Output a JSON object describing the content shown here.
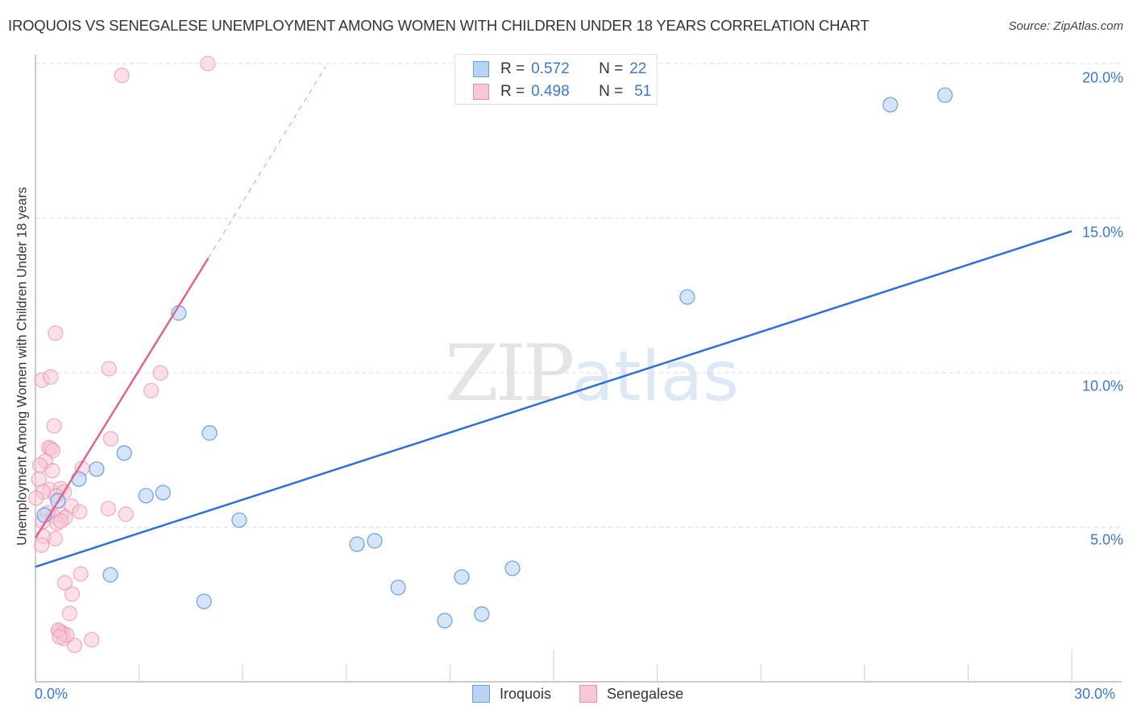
{
  "header": {
    "title": "IROQUOIS VS SENEGALESE UNEMPLOYMENT AMONG WOMEN WITH CHILDREN UNDER 18 YEARS CORRELATION CHART",
    "source": "Source: ZipAtlas.com"
  },
  "watermark": {
    "zip": "ZIP",
    "atlas": "atlas"
  },
  "colors": {
    "iroquois_fill": "#b9d3f5",
    "iroquois_stroke": "#6b9fe0",
    "iroquois_line": "#2f6fd6",
    "senegalese_fill": "#f8c6d5",
    "senegalese_stroke": "#eb8eab",
    "senegalese_line": "#e0648e",
    "tick_label": "#3b78d0"
  },
  "legend": {
    "rows": [
      {
        "series": "Iroquois",
        "r_label": "R =",
        "r_value": "0.572",
        "n_label": "N =",
        "n_value": "22"
      },
      {
        "series": "Senegalese",
        "r_label": "R =",
        "r_value": "0.498",
        "n_label": "N =",
        "n_value": "51"
      }
    ]
  },
  "bottom_legend": [
    {
      "label": "Iroquois"
    },
    {
      "label": "Senegalese"
    }
  ],
  "axes": {
    "y_label": "Unemployment Among Women with Children Under 18 years",
    "y_ticks": [
      "20.0%",
      "15.0%",
      "10.0%",
      "5.0%"
    ],
    "x_ticks": [
      "0.0%",
      "30.0%"
    ]
  },
  "chart_data": {
    "type": "scatter",
    "title": "IROQUOIS VS SENEGALESE UNEMPLOYMENT AMONG WOMEN WITH CHILDREN UNDER 18 YEARS CORRELATION CHART",
    "xlabel": "",
    "ylabel": "Unemployment Among Women with Children Under 18 years",
    "xlim": [
      0,
      30
    ],
    "ylim": [
      0,
      20.5
    ],
    "x_tick_labels": [
      "0.0%",
      "30.0%"
    ],
    "y_tick_labels": [
      "5.0%",
      "10.0%",
      "15.0%",
      "20.0%"
    ],
    "grid": "horizontal dashed at 5,10,15,20",
    "legend_position": "top-center",
    "series": [
      {
        "name": "Iroquois",
        "R": 0.572,
        "N": 22,
        "color": "#6b9fe0",
        "points": [
          [
            24.75,
            18.67
          ],
          [
            26.33,
            18.98
          ],
          [
            18.87,
            12.45
          ],
          [
            4.15,
            11.93
          ],
          [
            5.04,
            8.05
          ],
          [
            2.57,
            7.4
          ],
          [
            1.77,
            6.88
          ],
          [
            1.26,
            6.56
          ],
          [
            3.2,
            6.02
          ],
          [
            3.69,
            6.12
          ],
          [
            5.9,
            5.23
          ],
          [
            9.31,
            4.45
          ],
          [
            9.82,
            4.56
          ],
          [
            2.17,
            3.46
          ],
          [
            4.88,
            2.6
          ],
          [
            10.5,
            3.05
          ],
          [
            12.34,
            3.39
          ],
          [
            13.81,
            3.67
          ],
          [
            11.85,
            1.98
          ],
          [
            12.92,
            2.19
          ],
          [
            0.65,
            5.86
          ],
          [
            0.26,
            5.39
          ]
        ],
        "trend": {
          "x": [
            0,
            30
          ],
          "y": [
            3.72,
            14.58
          ],
          "style": "solid"
        }
      },
      {
        "name": "Senegalese",
        "R": 0.498,
        "N": 51,
        "color": "#eb8eab",
        "points": [
          [
            2.5,
            19.62
          ],
          [
            4.99,
            20.0
          ],
          [
            0.58,
            11.28
          ],
          [
            0.19,
            9.76
          ],
          [
            0.44,
            9.86
          ],
          [
            2.13,
            10.13
          ],
          [
            3.62,
            9.99
          ],
          [
            3.35,
            9.42
          ],
          [
            0.54,
            8.28
          ],
          [
            2.18,
            7.86
          ],
          [
            0.38,
            7.58
          ],
          [
            0.44,
            7.55
          ],
          [
            0.5,
            7.48
          ],
          [
            0.29,
            7.14
          ],
          [
            0.13,
            7.01
          ],
          [
            0.49,
            6.83
          ],
          [
            1.35,
            6.9
          ],
          [
            0.1,
            6.55
          ],
          [
            0.42,
            6.22
          ],
          [
            0.23,
            6.14
          ],
          [
            0.73,
            6.25
          ],
          [
            0.83,
            6.14
          ],
          [
            0.6,
            6.01
          ],
          [
            0.02,
            5.94
          ],
          [
            1.05,
            5.68
          ],
          [
            0.35,
            5.47
          ],
          [
            0.52,
            5.36
          ],
          [
            0.75,
            5.41
          ],
          [
            0.86,
            5.31
          ],
          [
            1.28,
            5.5
          ],
          [
            2.11,
            5.6
          ],
          [
            2.62,
            5.42
          ],
          [
            0.21,
            5.18
          ],
          [
            0.62,
            5.13
          ],
          [
            0.73,
            5.2
          ],
          [
            0.57,
            4.63
          ],
          [
            0.23,
            4.7
          ],
          [
            0.18,
            4.42
          ],
          [
            0.85,
            3.2
          ],
          [
            1.31,
            3.49
          ],
          [
            1.06,
            2.84
          ],
          [
            0.99,
            2.21
          ],
          [
            0.68,
            1.64
          ],
          [
            0.75,
            1.6
          ],
          [
            0.8,
            1.56
          ],
          [
            0.82,
            1.4
          ],
          [
            1.13,
            1.18
          ],
          [
            1.63,
            1.36
          ],
          [
            0.91,
            1.51
          ],
          [
            0.66,
            1.67
          ],
          [
            0.7,
            1.45
          ]
        ],
        "trend": {
          "x": [
            0,
            5.0
          ],
          "y": [
            4.65,
            13.7
          ],
          "style": "solid",
          "extension": {
            "x": [
              5.0,
              8.4
            ],
            "y": [
              13.7,
              19.9
            ],
            "style": "dashed"
          }
        }
      }
    ]
  }
}
